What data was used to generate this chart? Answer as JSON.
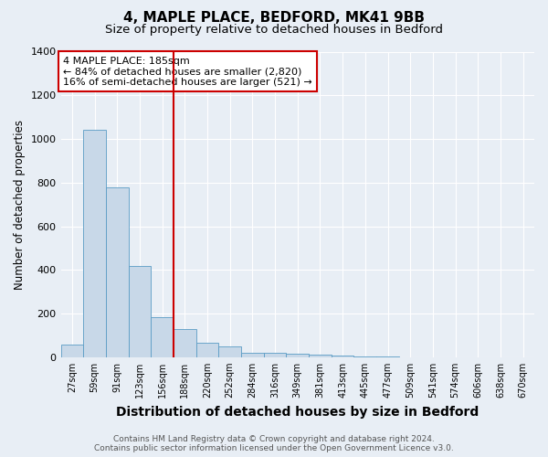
{
  "title1": "4, MAPLE PLACE, BEDFORD, MK41 9BB",
  "title2": "Size of property relative to detached houses in Bedford",
  "xlabel": "Distribution of detached houses by size in Bedford",
  "ylabel": "Number of detached properties",
  "bins": [
    "27sqm",
    "59sqm",
    "91sqm",
    "123sqm",
    "156sqm",
    "188sqm",
    "220sqm",
    "252sqm",
    "284sqm",
    "316sqm",
    "349sqm",
    "381sqm",
    "413sqm",
    "445sqm",
    "477sqm",
    "509sqm",
    "541sqm",
    "574sqm",
    "606sqm",
    "638sqm",
    "670sqm"
  ],
  "values": [
    57,
    1040,
    780,
    420,
    185,
    130,
    65,
    50,
    20,
    20,
    15,
    10,
    8,
    5,
    3,
    0,
    0,
    0,
    0,
    0
  ],
  "bar_color": "#c8d8e8",
  "bar_edge_color": "#5a9cc5",
  "vline_bin_index": 5,
  "vline_color": "#cc0000",
  "annotation_title": "4 MAPLE PLACE: 185sqm",
  "annotation_line1": "← 84% of detached houses are smaller (2,820)",
  "annotation_line2": "16% of semi-detached houses are larger (521) →",
  "annotation_box_color": "#ffffff",
  "annotation_edge_color": "#cc0000",
  "ylim": [
    0,
    1400
  ],
  "background_color": "#e8eef5",
  "plot_background": "#e8eef5",
  "footer1": "Contains HM Land Registry data © Crown copyright and database right 2024.",
  "footer2": "Contains public sector information licensed under the Open Government Licence v3.0.",
  "title1_fontsize": 11,
  "title2_fontsize": 9.5,
  "xlabel_fontsize": 10,
  "ylabel_fontsize": 8.5,
  "tick_fontsize": 7,
  "annotation_fontsize": 8,
  "footer_fontsize": 6.5,
  "ytick_labels": [
    0,
    200,
    400,
    600,
    800,
    1000,
    1200,
    1400
  ]
}
